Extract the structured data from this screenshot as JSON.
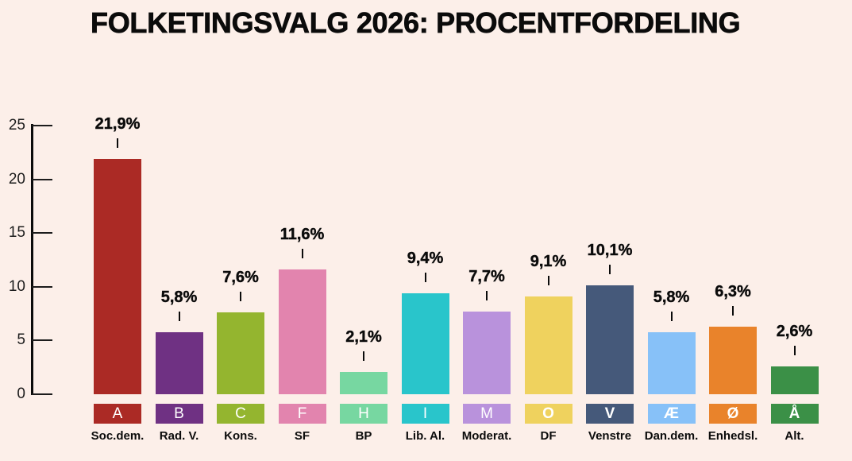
{
  "title": "FOLKETINGSVALG 2026: PROCENTFORDELING",
  "background_color": "#fcefe9",
  "axis_color": "#0b0b0b",
  "chart_data": {
    "type": "bar",
    "title": "FOLKETINGSVALG 2026: PROCENTFORDELING",
    "xlabel": "",
    "ylabel": "",
    "ylim": [
      0,
      25
    ],
    "yticks": [
      0,
      5,
      10,
      15,
      20,
      25
    ],
    "ytick_labels": [
      "0",
      "5",
      "10",
      "15",
      "20",
      "25"
    ],
    "grid": false,
    "legend": false,
    "value_suffix": "%",
    "decimal_separator": ",",
    "categories": [
      "Soc.dem.",
      "Rad. V.",
      "Kons.",
      "SF",
      "BP",
      "Lib. Al.",
      "Moderat.",
      "DF",
      "Venstre",
      "Dan.dem.",
      "Enhedsl.",
      "Alt."
    ],
    "values": [
      21.9,
      5.8,
      7.6,
      11.6,
      2.1,
      9.4,
      7.7,
      9.1,
      10.1,
      5.8,
      6.3,
      2.6
    ],
    "parties": [
      {
        "letter": "A",
        "name": "Soc.dem.",
        "value": 21.9,
        "value_label": "21,9%",
        "color": "#ab2a25",
        "letter_weight": "regular"
      },
      {
        "letter": "B",
        "name": "Rad. V.",
        "value": 5.8,
        "value_label": "5,8%",
        "color": "#6f3183",
        "letter_weight": "regular"
      },
      {
        "letter": "C",
        "name": "Kons.",
        "value": 7.6,
        "value_label": "7,6%",
        "color": "#94b52f",
        "letter_weight": "regular"
      },
      {
        "letter": "F",
        "name": "SF",
        "value": 11.6,
        "value_label": "11,6%",
        "color": "#e284ae",
        "letter_weight": "regular"
      },
      {
        "letter": "H",
        "name": "BP",
        "value": 2.1,
        "value_label": "2,1%",
        "color": "#77d7a1",
        "letter_weight": "regular"
      },
      {
        "letter": "I",
        "name": "Lib. Al.",
        "value": 9.4,
        "value_label": "9,4%",
        "color": "#29c5cb",
        "letter_weight": "regular"
      },
      {
        "letter": "M",
        "name": "Moderat.",
        "value": 7.7,
        "value_label": "7,7%",
        "color": "#b992dc",
        "letter_weight": "regular"
      },
      {
        "letter": "O",
        "name": "DF",
        "value": 9.1,
        "value_label": "9,1%",
        "color": "#efd25e",
        "letter_weight": "bold"
      },
      {
        "letter": "V",
        "name": "Venstre",
        "value": 10.1,
        "value_label": "10,1%",
        "color": "#45597a",
        "letter_weight": "bold"
      },
      {
        "letter": "Æ",
        "name": "Dan.dem.",
        "value": 5.8,
        "value_label": "5,8%",
        "color": "#87c1f8",
        "letter_weight": "bold"
      },
      {
        "letter": "Ø",
        "name": "Enhedsl.",
        "value": 6.3,
        "value_label": "6,3%",
        "color": "#e9832b",
        "letter_weight": "bold"
      },
      {
        "letter": "Å",
        "name": "Alt.",
        "value": 2.6,
        "value_label": "2,6%",
        "color": "#3b9047",
        "letter_weight": "bold"
      }
    ]
  }
}
